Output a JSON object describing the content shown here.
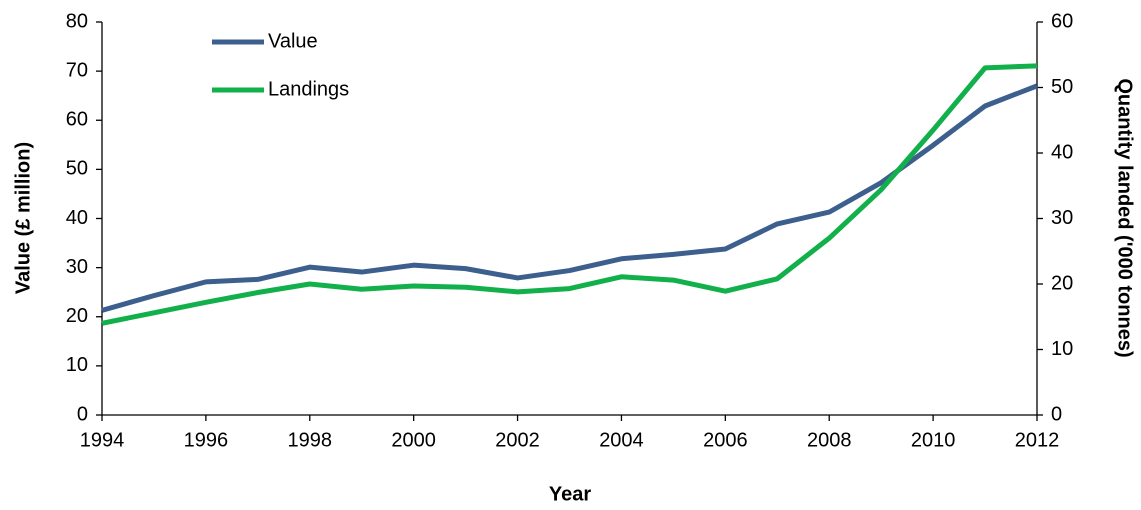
{
  "chart_data": {
    "type": "line",
    "x_label": "Year",
    "y_label": "Value (£ million)",
    "y2_label": "Quantity landed ('000 tonnes)",
    "x": [
      1994,
      1995,
      1996,
      1997,
      1998,
      1999,
      2000,
      2001,
      2002,
      2003,
      2004,
      2005,
      2006,
      2007,
      2008,
      2009,
      2010,
      2011,
      2012
    ],
    "series": [
      {
        "name": "Value",
        "color": "#3c5f8e",
        "axis": "y",
        "values": [
          21.3,
          24.3,
          27.1,
          27.6,
          30.1,
          29.1,
          30.5,
          29.8,
          27.9,
          29.4,
          31.8,
          32.7,
          33.8,
          38.9,
          41.3,
          47.3,
          54.9,
          62.9,
          67.0
        ]
      },
      {
        "name": "Landings",
        "color": "#12b04b",
        "axis": "y2",
        "values": [
          14.0,
          15.6,
          17.2,
          18.7,
          20.0,
          19.2,
          19.7,
          19.5,
          18.8,
          19.3,
          21.1,
          20.6,
          18.9,
          20.8,
          27.0,
          34.4,
          43.5,
          53.0,
          53.3
        ]
      }
    ],
    "xlim": [
      1994,
      2012
    ],
    "xticks": [
      1994,
      1996,
      1998,
      2000,
      2002,
      2004,
      2006,
      2008,
      2010,
      2012
    ],
    "ylim": [
      0,
      80
    ],
    "yticks": [
      0,
      10,
      20,
      30,
      40,
      50,
      60,
      70,
      80
    ],
    "y2lim": [
      0,
      60
    ],
    "y2ticks": [
      0,
      10,
      20,
      30,
      40,
      50,
      60
    ],
    "grid": false,
    "legend": "upper left"
  }
}
